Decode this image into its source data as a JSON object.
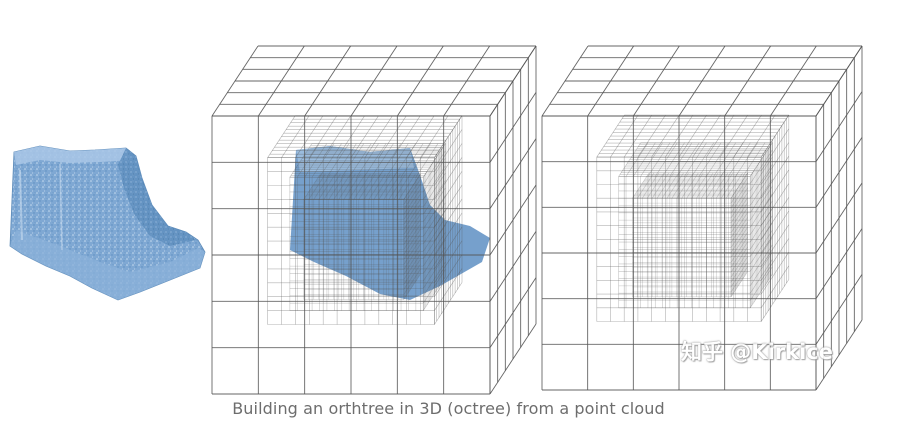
{
  "caption": "Building an orthtree in 3D (octree) from a point cloud",
  "watermark": "知乎 @Kirkice",
  "colors": {
    "shape_fill": "#7aa3cf",
    "shape_light": "#a8c6e4",
    "shape_dark": "#4e7fae",
    "grid_line": "#6b6b6b",
    "caption_text": "#6d6d6d"
  },
  "panels": [
    {
      "name": "point-cloud-shape"
    },
    {
      "name": "octree-with-shape"
    },
    {
      "name": "octree-only"
    }
  ]
}
